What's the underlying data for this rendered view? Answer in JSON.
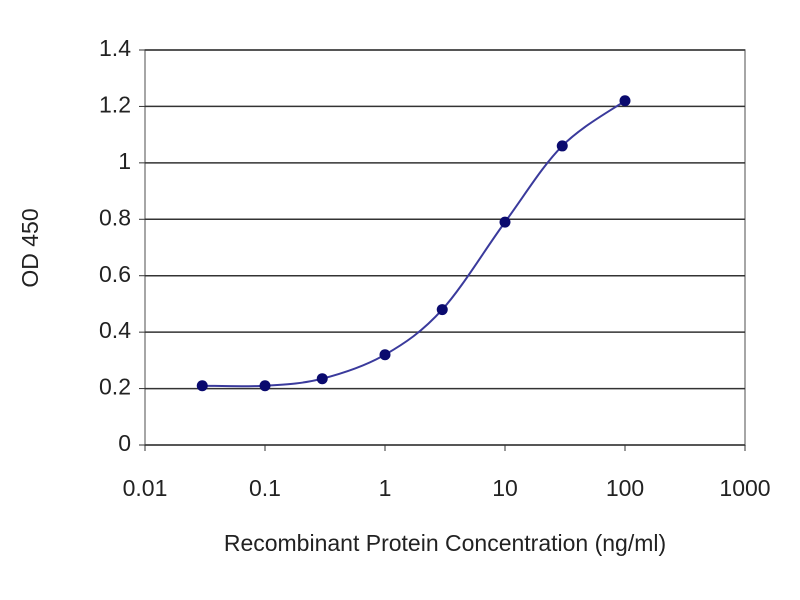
{
  "chart_data": {
    "type": "line",
    "x_label": "Recombinant Protein Concentration (ng/ml)",
    "y_label": "OD 450",
    "x": [
      0.03,
      0.1,
      0.3,
      1,
      3,
      10,
      30,
      100
    ],
    "values": [
      0.21,
      0.21,
      0.235,
      0.32,
      0.48,
      0.79,
      1.06,
      1.22
    ],
    "color": "#3a3a9c",
    "marker_color": "#0a0a6e",
    "xscale": "log",
    "xlim": [
      0.01,
      1000
    ],
    "xticks": [
      0.01,
      0.1,
      1,
      10,
      100,
      1000
    ],
    "ylim": [
      0,
      1.4
    ],
    "yticks": [
      0,
      0.2,
      0.4,
      0.6,
      0.8,
      1,
      1.2,
      1.4
    ],
    "grid": true
  }
}
